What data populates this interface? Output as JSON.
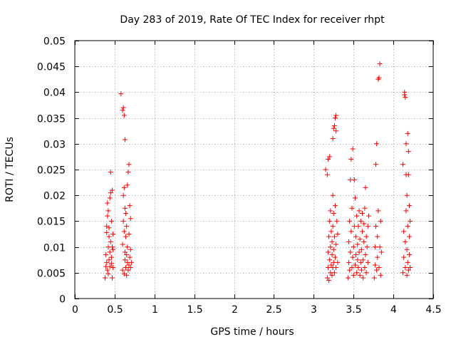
{
  "chart_data": {
    "type": "scatter",
    "title": "Day 283 of 2019, Rate Of TEC Index for receiver rhpt",
    "xlabel": "GPS time / hours",
    "ylabel": "ROTI / TECUs",
    "xlim": [
      0,
      4.5
    ],
    "ylim": [
      0,
      0.05
    ],
    "x_ticks": [
      0,
      0.5,
      1,
      1.5,
      2,
      2.5,
      3,
      3.5,
      4,
      4.5
    ],
    "x_tick_labels": [
      "0",
      "0.5",
      "1",
      "1.5",
      "2",
      "2.5",
      "3",
      "3.5",
      "4",
      "4.5"
    ],
    "y_ticks": [
      0,
      0.005,
      0.01,
      0.015,
      0.02,
      0.025,
      0.03,
      0.035,
      0.04,
      0.045,
      0.05
    ],
    "y_tick_labels": [
      "0",
      "0.005",
      "0.01",
      "0.015",
      "0.02",
      "0.025",
      "0.03",
      "0.035",
      "0.04",
      "0.045",
      "0.05"
    ],
    "grid": true,
    "marker": "+",
    "marker_color": "#ff0000",
    "series": [
      {
        "name": "ROTI",
        "points": [
          [
            0.38,
            0.004
          ],
          [
            0.39,
            0.0062
          ],
          [
            0.39,
            0.0085
          ],
          [
            0.4,
            0.007
          ],
          [
            0.4,
            0.0128
          ],
          [
            0.4,
            0.014
          ],
          [
            0.41,
            0.0055
          ],
          [
            0.41,
            0.016
          ],
          [
            0.41,
            0.0185
          ],
          [
            0.42,
            0.01
          ],
          [
            0.42,
            0.017
          ],
          [
            0.42,
            0.0048
          ],
          [
            0.43,
            0.0075
          ],
          [
            0.43,
            0.0137
          ],
          [
            0.43,
            0.012
          ],
          [
            0.44,
            0.0062
          ],
          [
            0.44,
            0.0195
          ],
          [
            0.44,
            0.009
          ],
          [
            0.45,
            0.0245
          ],
          [
            0.45,
            0.011
          ],
          [
            0.45,
            0.0205
          ],
          [
            0.46,
            0.015
          ],
          [
            0.46,
            0.0068
          ],
          [
            0.46,
            0.008
          ],
          [
            0.47,
            0.004
          ],
          [
            0.47,
            0.01
          ],
          [
            0.47,
            0.021
          ],
          [
            0.48,
            0.006
          ],
          [
            0.48,
            0.0125
          ],
          [
            0.48,
            0.0095
          ],
          [
            0.58,
            0.0397
          ],
          [
            0.6,
            0.0365
          ],
          [
            0.61,
            0.037
          ],
          [
            0.62,
            0.0355
          ],
          [
            0.63,
            0.0308
          ],
          [
            0.6,
            0.0055
          ],
          [
            0.6,
            0.0105
          ],
          [
            0.61,
            0.015
          ],
          [
            0.61,
            0.02
          ],
          [
            0.62,
            0.0048
          ],
          [
            0.62,
            0.013
          ],
          [
            0.62,
            0.0215
          ],
          [
            0.63,
            0.0075
          ],
          [
            0.63,
            0.0175
          ],
          [
            0.63,
            0.009
          ],
          [
            0.64,
            0.006
          ],
          [
            0.64,
            0.012
          ],
          [
            0.64,
            0.0165
          ],
          [
            0.65,
            0.0045
          ],
          [
            0.65,
            0.0085
          ],
          [
            0.65,
            0.014
          ],
          [
            0.66,
            0.007
          ],
          [
            0.66,
            0.01
          ],
          [
            0.66,
            0.022
          ],
          [
            0.67,
            0.0055
          ],
          [
            0.67,
            0.0245
          ],
          [
            0.68,
            0.0065
          ],
          [
            0.68,
            0.0125
          ],
          [
            0.68,
            0.026
          ],
          [
            0.69,
            0.008
          ],
          [
            0.69,
            0.018
          ],
          [
            0.7,
            0.006
          ],
          [
            0.7,
            0.0095
          ],
          [
            0.7,
            0.0155
          ],
          [
            0.71,
            0.007
          ],
          [
            3.15,
            0.025
          ],
          [
            3.17,
            0.024
          ],
          [
            3.18,
            0.027
          ],
          [
            3.2,
            0.0275
          ],
          [
            3.17,
            0.004
          ],
          [
            3.18,
            0.006
          ],
          [
            3.18,
            0.009
          ],
          [
            3.19,
            0.012
          ],
          [
            3.19,
            0.0035
          ],
          [
            3.2,
            0.0075
          ],
          [
            3.2,
            0.015
          ],
          [
            3.21,
            0.005
          ],
          [
            3.21,
            0.01
          ],
          [
            3.21,
            0.017
          ],
          [
            3.22,
            0.0065
          ],
          [
            3.22,
            0.013
          ],
          [
            3.23,
            0.0045
          ],
          [
            3.23,
            0.0085
          ],
          [
            3.23,
            0.011
          ],
          [
            3.24,
            0.006
          ],
          [
            3.24,
            0.014
          ],
          [
            3.24,
            0.02
          ],
          [
            3.25,
            0.007
          ],
          [
            3.25,
            0.0095
          ],
          [
            3.25,
            0.0165
          ],
          [
            3.26,
            0.005
          ],
          [
            3.26,
            0.012
          ],
          [
            3.27,
            0.008
          ],
          [
            3.27,
            0.018
          ],
          [
            3.28,
            0.006
          ],
          [
            3.28,
            0.0105
          ],
          [
            3.29,
            0.015
          ],
          [
            3.3,
            0.007
          ],
          [
            3.3,
            0.0125
          ],
          [
            3.24,
            0.031
          ],
          [
            3.25,
            0.033
          ],
          [
            3.26,
            0.0335
          ],
          [
            3.27,
            0.035
          ],
          [
            3.28,
            0.0355
          ],
          [
            3.28,
            0.0325
          ],
          [
            3.43,
            0.004
          ],
          [
            3.44,
            0.007
          ],
          [
            3.44,
            0.011
          ],
          [
            3.45,
            0.015
          ],
          [
            3.45,
            0.0055
          ],
          [
            3.46,
            0.009
          ],
          [
            3.46,
            0.023
          ],
          [
            3.47,
            0.027
          ],
          [
            3.47,
            0.013
          ],
          [
            3.48,
            0.006
          ],
          [
            3.48,
            0.0175
          ],
          [
            3.49,
            0.029
          ],
          [
            3.49,
            0.008
          ],
          [
            3.5,
            0.01
          ],
          [
            3.5,
            0.0045
          ],
          [
            3.51,
            0.014
          ],
          [
            3.51,
            0.023
          ],
          [
            3.52,
            0.0065
          ],
          [
            3.52,
            0.0195
          ],
          [
            3.53,
            0.0085
          ],
          [
            3.53,
            0.012
          ],
          [
            3.54,
            0.005
          ],
          [
            3.54,
            0.016
          ],
          [
            3.55,
            0.0075
          ],
          [
            3.55,
            0.0105
          ],
          [
            3.56,
            0.006
          ],
          [
            3.56,
            0.014
          ],
          [
            3.57,
            0.009
          ],
          [
            3.57,
            0.017
          ],
          [
            3.58,
            0.0045
          ],
          [
            3.58,
            0.0115
          ],
          [
            3.59,
            0.007
          ],
          [
            3.59,
            0.015
          ],
          [
            3.6,
            0.0055
          ],
          [
            3.6,
            0.0095
          ],
          [
            3.61,
            0.013
          ],
          [
            3.61,
            0.0165
          ],
          [
            3.62,
            0.0075
          ],
          [
            3.62,
            0.004
          ],
          [
            3.63,
            0.011
          ],
          [
            3.63,
            0.0145
          ],
          [
            3.64,
            0.006
          ],
          [
            3.64,
            0.0175
          ],
          [
            3.65,
            0.0085
          ],
          [
            3.65,
            0.0215
          ],
          [
            3.66,
            0.005
          ],
          [
            3.66,
            0.012
          ],
          [
            3.67,
            0.01
          ],
          [
            3.68,
            0.007
          ],
          [
            3.68,
            0.014
          ],
          [
            3.69,
            0.016
          ],
          [
            3.76,
            0.004
          ],
          [
            3.77,
            0.0065
          ],
          [
            3.77,
            0.01
          ],
          [
            3.78,
            0.014
          ],
          [
            3.78,
            0.026
          ],
          [
            3.79,
            0.03
          ],
          [
            3.79,
            0.0055
          ],
          [
            3.8,
            0.012
          ],
          [
            3.8,
            0.008
          ],
          [
            3.81,
            0.017
          ],
          [
            3.81,
            0.0425
          ],
          [
            3.82,
            0.0428
          ],
          [
            3.83,
            0.0455
          ],
          [
            3.82,
            0.006
          ],
          [
            3.83,
            0.01
          ],
          [
            3.84,
            0.015
          ],
          [
            3.84,
            0.0045
          ],
          [
            3.85,
            0.009
          ],
          [
            4.12,
            0.026
          ],
          [
            4.12,
            0.005
          ],
          [
            4.13,
            0.008
          ],
          [
            4.13,
            0.013
          ],
          [
            4.14,
            0.0395
          ],
          [
            4.14,
            0.04
          ],
          [
            4.15,
            0.039
          ],
          [
            4.15,
            0.006
          ],
          [
            4.15,
            0.011
          ],
          [
            4.16,
            0.024
          ],
          [
            4.16,
            0.03
          ],
          [
            4.16,
            0.017
          ],
          [
            4.17,
            0.0045
          ],
          [
            4.17,
            0.0095
          ],
          [
            4.17,
            0.02
          ],
          [
            4.18,
            0.032
          ],
          [
            4.18,
            0.014
          ],
          [
            4.18,
            0.007
          ],
          [
            4.19,
            0.024
          ],
          [
            4.19,
            0.0285
          ],
          [
            4.19,
            0.0055
          ],
          [
            4.2,
            0.012
          ],
          [
            4.2,
            0.018
          ],
          [
            4.2,
            0.0085
          ],
          [
            4.21,
            0.006
          ],
          [
            4.21,
            0.015
          ]
        ]
      }
    ]
  }
}
